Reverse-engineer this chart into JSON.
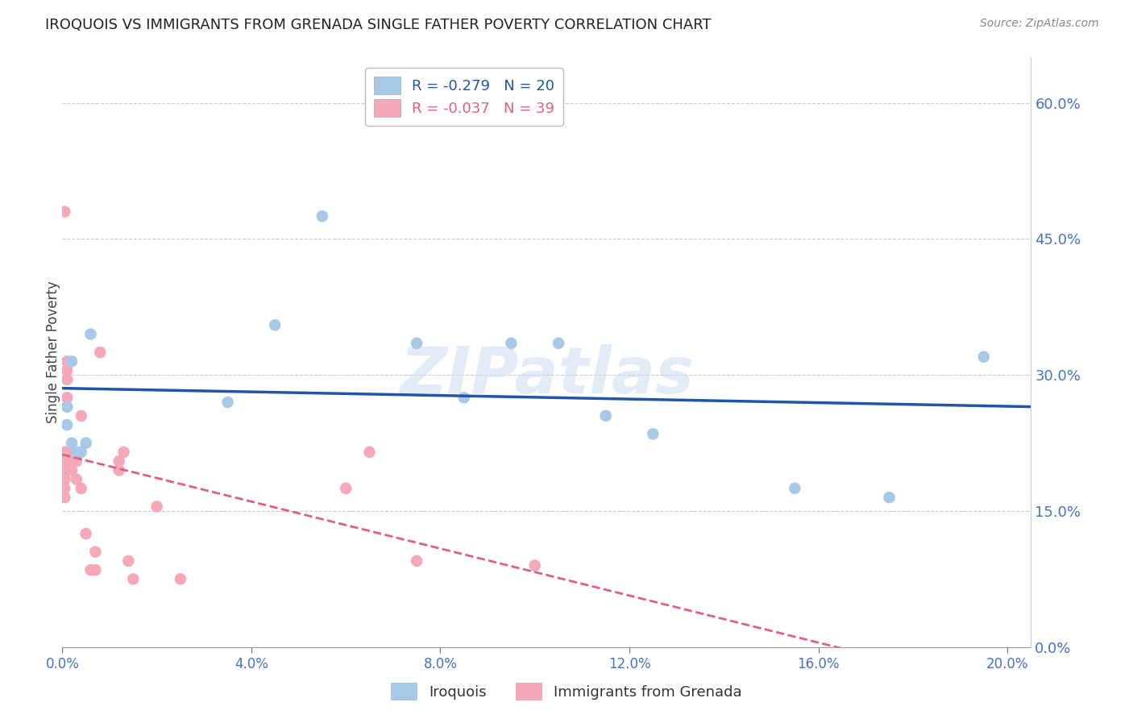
{
  "title": "IROQUOIS VS IMMIGRANTS FROM GRENADA SINGLE FATHER POVERTY CORRELATION CHART",
  "source": "Source: ZipAtlas.com",
  "ylabel": "Single Father Poverty",
  "legend_iroquois": "R = -0.279   N = 20",
  "legend_grenada": "R = -0.037   N = 39",
  "iroquois_color": "#a8c8e8",
  "grenada_color": "#f4a8b8",
  "trendline_iroquois_color": "#2255aa",
  "trendline_grenada_color": "#e06080",
  "watermark": "ZIPatlas",
  "iroquois_x": [
    0.001,
    0.001,
    0.002,
    0.002,
    0.003,
    0.004,
    0.005,
    0.006,
    0.035,
    0.045,
    0.055,
    0.075,
    0.085,
    0.095,
    0.105,
    0.115,
    0.125,
    0.155,
    0.175,
    0.195
  ],
  "iroquois_y": [
    0.245,
    0.265,
    0.315,
    0.225,
    0.215,
    0.215,
    0.225,
    0.345,
    0.27,
    0.355,
    0.475,
    0.335,
    0.275,
    0.335,
    0.335,
    0.255,
    0.235,
    0.175,
    0.165,
    0.32
  ],
  "grenada_x": [
    0.0005,
    0.0005,
    0.0005,
    0.0005,
    0.0005,
    0.0005,
    0.0005,
    0.0005,
    0.0005,
    0.0005,
    0.001,
    0.001,
    0.001,
    0.001,
    0.001,
    0.001,
    0.001,
    0.002,
    0.002,
    0.003,
    0.003,
    0.004,
    0.004,
    0.005,
    0.006,
    0.007,
    0.007,
    0.008,
    0.012,
    0.012,
    0.013,
    0.014,
    0.015,
    0.02,
    0.025,
    0.06,
    0.065,
    0.075,
    0.1
  ],
  "grenada_y": [
    0.205,
    0.215,
    0.2,
    0.21,
    0.195,
    0.185,
    0.175,
    0.165,
    0.215,
    0.48,
    0.215,
    0.205,
    0.265,
    0.275,
    0.295,
    0.305,
    0.315,
    0.195,
    0.215,
    0.205,
    0.185,
    0.175,
    0.255,
    0.125,
    0.085,
    0.105,
    0.085,
    0.325,
    0.205,
    0.195,
    0.215,
    0.095,
    0.075,
    0.155,
    0.075,
    0.175,
    0.215,
    0.095,
    0.09
  ],
  "xlim": [
    0.0,
    0.205
  ],
  "ylim": [
    0.0,
    0.65
  ],
  "yticks": [
    0.0,
    0.15,
    0.3,
    0.45,
    0.6
  ],
  "xtick_step": 0.04
}
